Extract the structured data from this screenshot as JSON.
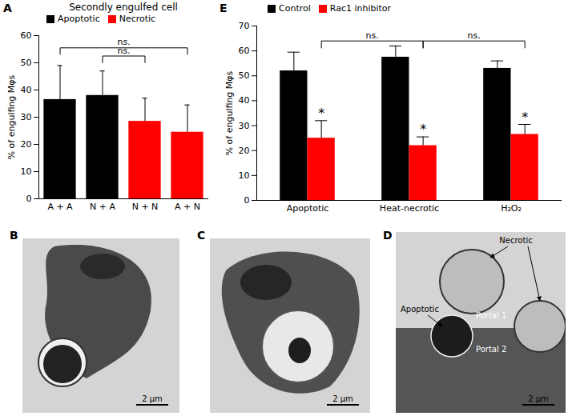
{
  "chart_data": [
    {
      "type": "bar",
      "panel": "A",
      "title": "Secondly engulfed cell",
      "y_label": "% of engulfing Mφs",
      "categories": [
        "A + A",
        "N + A",
        "N + N",
        "A + N"
      ],
      "series": [
        {
          "name": "Apoptotic",
          "color": "#000000",
          "values": [
            36.5,
            38,
            null,
            null
          ],
          "errors": [
            12.5,
            9,
            null,
            null
          ]
        },
        {
          "name": "Necrotic",
          "color": "#ff0000",
          "values": [
            null,
            null,
            28.5,
            24.5
          ],
          "errors": [
            null,
            null,
            8.5,
            10
          ]
        }
      ],
      "ylim": [
        0,
        60
      ],
      "yticks": [
        0,
        10,
        20,
        30,
        40,
        50,
        60
      ],
      "legend": "top-left",
      "brackets": [
        {
          "from": 0,
          "to": 3,
          "y": 55.5,
          "label": "ns."
        },
        {
          "from": 1,
          "to": 2,
          "y": 52.5,
          "label": "ns."
        }
      ]
    },
    {
      "type": "bar",
      "panel": "E",
      "y_label": "% of engulfing Mφs",
      "categories": [
        "Apoptotic",
        "Heat-necrotic",
        "H₂O₂"
      ],
      "series": [
        {
          "name": "Control",
          "color": "#000000",
          "values": [
            52,
            57.5,
            53
          ],
          "errors": [
            7.5,
            4.5,
            3
          ]
        },
        {
          "name": "Rac1 inhibitor",
          "color": "#ff0000",
          "values": [
            25,
            22,
            26.5
          ],
          "errors": [
            7,
            3.5,
            4
          ],
          "annotations": [
            "*",
            "*",
            "*"
          ]
        }
      ],
      "ylim": [
        0,
        70
      ],
      "yticks": [
        0,
        10,
        20,
        30,
        40,
        50,
        60,
        70
      ],
      "legend": "top-left",
      "brackets": [
        {
          "from": 0,
          "to": 1,
          "series": "Rac1 inhibitor",
          "y": 64,
          "label": "ns."
        },
        {
          "from": 1,
          "to": 2,
          "series": "Rac1 inhibitor",
          "y": 64,
          "label": "ns."
        }
      ]
    }
  ],
  "images": [
    {
      "panel": "B",
      "scale_bar": "2 μm"
    },
    {
      "panel": "C",
      "scale_bar": "2 μm"
    },
    {
      "panel": "D",
      "scale_bar": "2 μm",
      "labels": [
        "Necrotic",
        "Apoptotic",
        "Portal 1",
        "Portal 2"
      ]
    }
  ]
}
